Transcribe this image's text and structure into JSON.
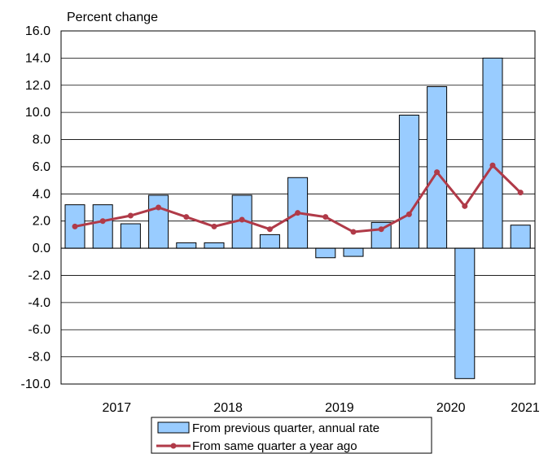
{
  "chart_data": {
    "type": "bar",
    "ylabel": "Percent change",
    "ylim": [
      -10,
      16
    ],
    "yticks": [
      "16.0",
      "14.0",
      "12.0",
      "10.0",
      "8.0",
      "6.0",
      "4.0",
      "2.0",
      "0.0",
      "-2.0",
      "-4.0",
      "-6.0",
      "-8.0",
      "-10.0"
    ],
    "year_labels": [
      "2017",
      "2018",
      "2019",
      "2020",
      "2021"
    ],
    "quarters": [
      "2017Q1",
      "2017Q2",
      "2017Q3",
      "2017Q4",
      "2018Q1",
      "2018Q2",
      "2018Q3",
      "2018Q4",
      "2019Q1",
      "2019Q2",
      "2019Q3",
      "2019Q4",
      "2020Q1",
      "2020Q2",
      "2020Q3",
      "2020Q4",
      "2021Q1",
      "2021Q2"
    ],
    "grid": true,
    "legend_position": "bottom",
    "series": [
      {
        "name": "From previous quarter, annual rate",
        "type": "bar",
        "color": "#99ccff",
        "values": [
          3.2,
          3.2,
          1.8,
          3.9,
          0.4,
          0.4,
          3.9,
          1.0,
          5.2,
          -0.7,
          -0.6,
          1.9,
          9.8,
          11.9,
          -9.6,
          14.0,
          1.7
        ]
      },
      {
        "name": "From same quarter a year ago",
        "type": "line",
        "color": "#b03a48",
        "values": [
          1.6,
          2.0,
          2.4,
          3.0,
          2.3,
          1.6,
          2.1,
          1.4,
          2.6,
          2.3,
          1.2,
          1.4,
          2.5,
          5.6,
          3.1,
          6.1,
          4.1
        ]
      }
    ]
  }
}
